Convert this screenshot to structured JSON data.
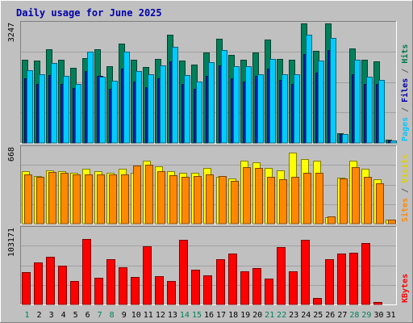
{
  "chart_data": {
    "type": "bar",
    "title": "Daily usage for June 2025",
    "categories": [
      "1",
      "2",
      "3",
      "4",
      "5",
      "6",
      "7",
      "8",
      "9",
      "10",
      "11",
      "12",
      "13",
      "14",
      "15",
      "16",
      "17",
      "18",
      "19",
      "20",
      "21",
      "22",
      "23",
      "24",
      "25",
      "26",
      "27",
      "28",
      "29",
      "30",
      "31"
    ],
    "weekend_days": [
      "1",
      "7",
      "8",
      "14",
      "15",
      "21",
      "22",
      "28",
      "29"
    ],
    "panels": [
      {
        "id": "top",
        "max_label": "3247",
        "max": 3247,
        "axis_labels": [
          {
            "text": "Pages",
            "color": "#00c8ff"
          },
          {
            "text": " / ",
            "color": "#606060"
          },
          {
            "text": "Files",
            "color": "#0000aa"
          },
          {
            "text": " / ",
            "color": "#606060"
          },
          {
            "text": "Hits",
            "color": "#007a4a"
          }
        ],
        "series": [
          {
            "name": "Hits",
            "color": "#00805a",
            "values": [
              2255,
              2225,
              2520,
              2255,
              2035,
              2290,
              2520,
              2065,
              2685,
              2245,
              2055,
              2265,
              2915,
              2220,
              2115,
              2450,
              2805,
              2380,
              2250,
              2435,
              2785,
              2265,
              2245,
              3235,
              2495,
              3230,
              260,
              2550,
              2240,
              2210,
              90
            ]
          },
          {
            "name": "Files",
            "color": "#1a1aa0",
            "values": [
              1750,
              1600,
              1820,
              1580,
              1480,
              1930,
              1800,
              1450,
              2000,
              1650,
              1500,
              1750,
              2200,
              1600,
              1450,
              1800,
              2100,
              1750,
              1650,
              1800,
              2000,
              1700,
              1600,
              2400,
              1900,
              2500,
              230,
              1850,
              1600,
              1600,
              70
            ]
          },
          {
            "name": "Pages",
            "color": "#00ccff",
            "values": [
              1960,
              1855,
              2160,
              1810,
              1580,
              2465,
              1790,
              1670,
              2465,
              1945,
              1855,
              2090,
              2600,
              1820,
              1650,
              2170,
              2510,
              2060,
              2065,
              1855,
              2275,
              1845,
              1855,
              2915,
              2215,
              2835,
              240,
              2235,
              1780,
              1710,
              75
            ]
          }
        ]
      },
      {
        "id": "mid",
        "max_label": "668",
        "max": 668,
        "axis_labels": [
          {
            "text": "Sites",
            "color": "#ff8800"
          },
          {
            "text": " / ",
            "color": "#606060"
          },
          {
            "text": "Visits",
            "color": "#e0d000"
          }
        ],
        "series": [
          {
            "name": "Visits",
            "color": "#ffff00",
            "values": [
              455,
              415,
              465,
              460,
              440,
              475,
              455,
              445,
              475,
              440,
              545,
              500,
              455,
              440,
              440,
              485,
              410,
              395,
              545,
              535,
              485,
              465,
              620,
              560,
              545,
              55,
              400,
              550,
              480,
              390,
              33
            ]
          },
          {
            "name": "Sites",
            "color": "#ff8800",
            "values": [
              430,
              410,
              450,
              440,
              430,
              430,
              430,
              430,
              430,
              505,
              510,
              455,
              420,
              410,
              415,
              430,
              415,
              375,
              495,
              485,
              410,
              390,
              405,
              440,
              440,
              60,
              395,
              495,
              405,
              350,
              33
            ]
          }
        ]
      },
      {
        "id": "bot",
        "max_label": "103171",
        "max": 103171,
        "axis_labels": [
          {
            "text": "KBytes",
            "color": "#ff0000"
          }
        ],
        "series": [
          {
            "name": "KBytes",
            "color": "#ff0000",
            "values": [
              43500,
              57000,
              64000,
              52000,
              31000,
              88000,
              36000,
              61000,
              50000,
              37000,
              78000,
              38000,
              31000,
              86500,
              47000,
              39000,
              61000,
              68000,
              44000,
              49000,
              35000,
              77000,
              45000,
              86500,
              9000,
              61000,
              68000,
              70000,
              82500,
              3000,
              0
            ]
          }
        ]
      }
    ]
  }
}
